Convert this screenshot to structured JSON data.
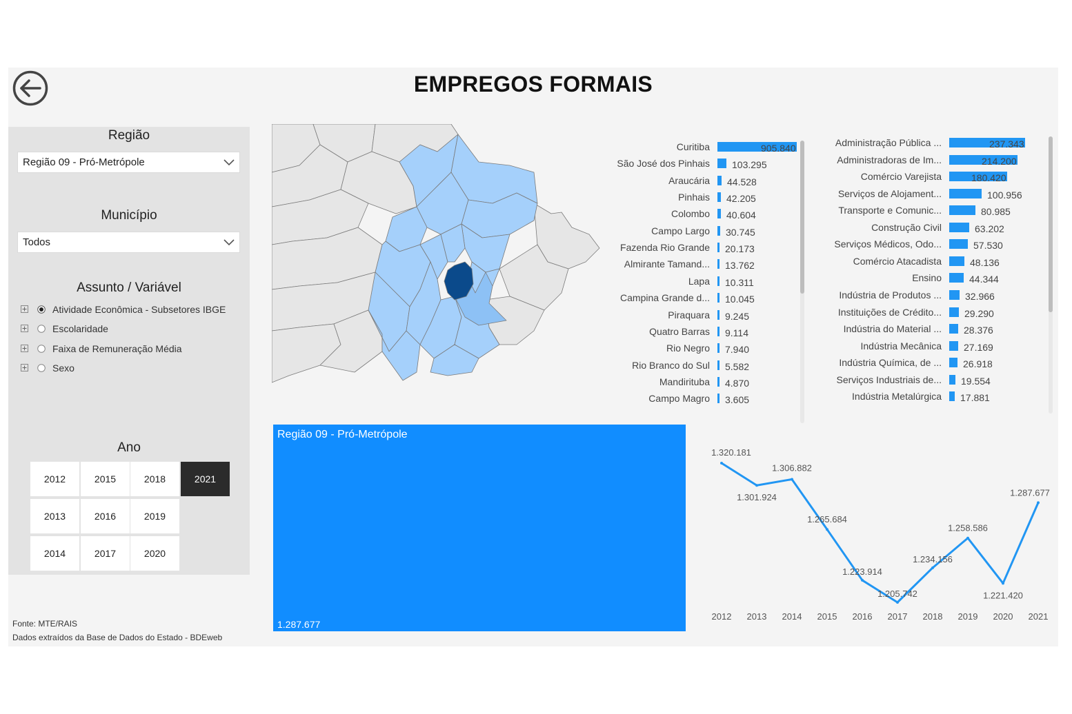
{
  "header": {
    "title": "EMPREGOS FORMAIS",
    "back_icon": "back-arrow-icon"
  },
  "filters": {
    "regiao": {
      "label": "Região",
      "value": "Região 09 - Pró-Metrópole"
    },
    "municipio": {
      "label": "Município",
      "value": "Todos"
    },
    "assunto": {
      "label": "Assunto / Variável",
      "options": [
        {
          "label": "Atividade Econômica - Subsetores IBGE",
          "selected": true
        },
        {
          "label": "Escolaridade",
          "selected": false
        },
        {
          "label": "Faixa de Remuneração Média",
          "selected": false
        },
        {
          "label": "Sexo",
          "selected": false
        }
      ]
    },
    "ano": {
      "label": "Ano",
      "years": [
        "2012",
        "2015",
        "2018",
        "2021",
        "2013",
        "2016",
        "2019",
        "2014",
        "2017",
        "2020"
      ],
      "selected": "2021"
    }
  },
  "footer": {
    "source": "Fonte: MTE/RAIS",
    "note": "Dados extraídos da Base de Dados do Estado - BDEweb"
  },
  "colors": {
    "accent": "#118dff",
    "bar": "#2196f3",
    "line": "#2196f3",
    "selected_year": "#2b2b2b",
    "map_region": "#a5d0fb",
    "map_selected": "#0b4a8b",
    "map_other": "#e6e6e6"
  },
  "municipios": {
    "items": [
      {
        "label": "Curitiba",
        "value": "905.840",
        "num": 905840
      },
      {
        "label": "São José dos Pinhais",
        "value": "103.295",
        "num": 103295
      },
      {
        "label": "Araucária",
        "value": "44.528",
        "num": 44528
      },
      {
        "label": "Pinhais",
        "value": "42.205",
        "num": 42205
      },
      {
        "label": "Colombo",
        "value": "40.604",
        "num": 40604
      },
      {
        "label": "Campo Largo",
        "value": "30.745",
        "num": 30745
      },
      {
        "label": "Fazenda Rio Grande",
        "value": "20.173",
        "num": 20173
      },
      {
        "label": "Almirante Tamand...",
        "value": "13.762",
        "num": 13762
      },
      {
        "label": "Lapa",
        "value": "10.311",
        "num": 10311
      },
      {
        "label": "Campina Grande d...",
        "value": "10.045",
        "num": 10045
      },
      {
        "label": "Piraquara",
        "value": "9.245",
        "num": 9245
      },
      {
        "label": "Quatro Barras",
        "value": "9.114",
        "num": 9114
      },
      {
        "label": "Rio Negro",
        "value": "7.940",
        "num": 7940
      },
      {
        "label": "Rio Branco do Sul",
        "value": "5.582",
        "num": 5582
      },
      {
        "label": "Mandirituba",
        "value": "4.870",
        "num": 4870
      },
      {
        "label": "Campo Magro",
        "value": "3.605",
        "num": 3605
      }
    ]
  },
  "subsetores": {
    "items": [
      {
        "label": "Administração Pública ...",
        "value": "237.343",
        "num": 237343
      },
      {
        "label": "Administradoras de Im...",
        "value": "214.200",
        "num": 214200
      },
      {
        "label": "Comércio Varejista",
        "value": "180.420",
        "num": 180420
      },
      {
        "label": "Serviços de Alojament...",
        "value": "100.956",
        "num": 100956
      },
      {
        "label": "Transporte e Comunic...",
        "value": "80.985",
        "num": 80985
      },
      {
        "label": "Construção Civil",
        "value": "63.202",
        "num": 63202
      },
      {
        "label": "Serviços Médicos, Odo...",
        "value": "57.530",
        "num": 57530
      },
      {
        "label": "Comércio Atacadista",
        "value": "48.136",
        "num": 48136
      },
      {
        "label": "Ensino",
        "value": "44.344",
        "num": 44344
      },
      {
        "label": "Indústria de Produtos ...",
        "value": "32.966",
        "num": 32966
      },
      {
        "label": "Instituições de Crédito...",
        "value": "29.290",
        "num": 29290
      },
      {
        "label": "Indústria do Material ...",
        "value": "28.376",
        "num": 28376
      },
      {
        "label": "Indústria Mecânica",
        "value": "27.169",
        "num": 27169
      },
      {
        "label": "Indústria Química, de ...",
        "value": "26.918",
        "num": 26918
      },
      {
        "label": "Serviços Industriais de...",
        "value": "19.554",
        "num": 19554
      },
      {
        "label": "Indústria Metalúrgica",
        "value": "17.881",
        "num": 17881
      }
    ]
  },
  "total_card": {
    "title": "Região 09 - Pró-Metrópole",
    "value": "1.287.677"
  },
  "chart_data": {
    "type": "line",
    "x": [
      "2012",
      "2013",
      "2014",
      "2015",
      "2016",
      "2017",
      "2018",
      "2019",
      "2020",
      "2021"
    ],
    "series": [
      {
        "values": [
          1320181,
          1301924,
          1306882,
          1265684,
          1223914,
          1205742,
          1234156,
          1258586,
          1221420,
          1287677
        ],
        "labels": [
          "1.320.181",
          "1.301.924",
          "1.306.882",
          "1.265.684",
          "1.223.914",
          "1.205.742",
          "1.234.156",
          "1.258.586",
          "1.221.420",
          "1.287.677"
        ]
      }
    ],
    "title": "",
    "xlabel": "",
    "ylabel": "",
    "grid": false
  }
}
